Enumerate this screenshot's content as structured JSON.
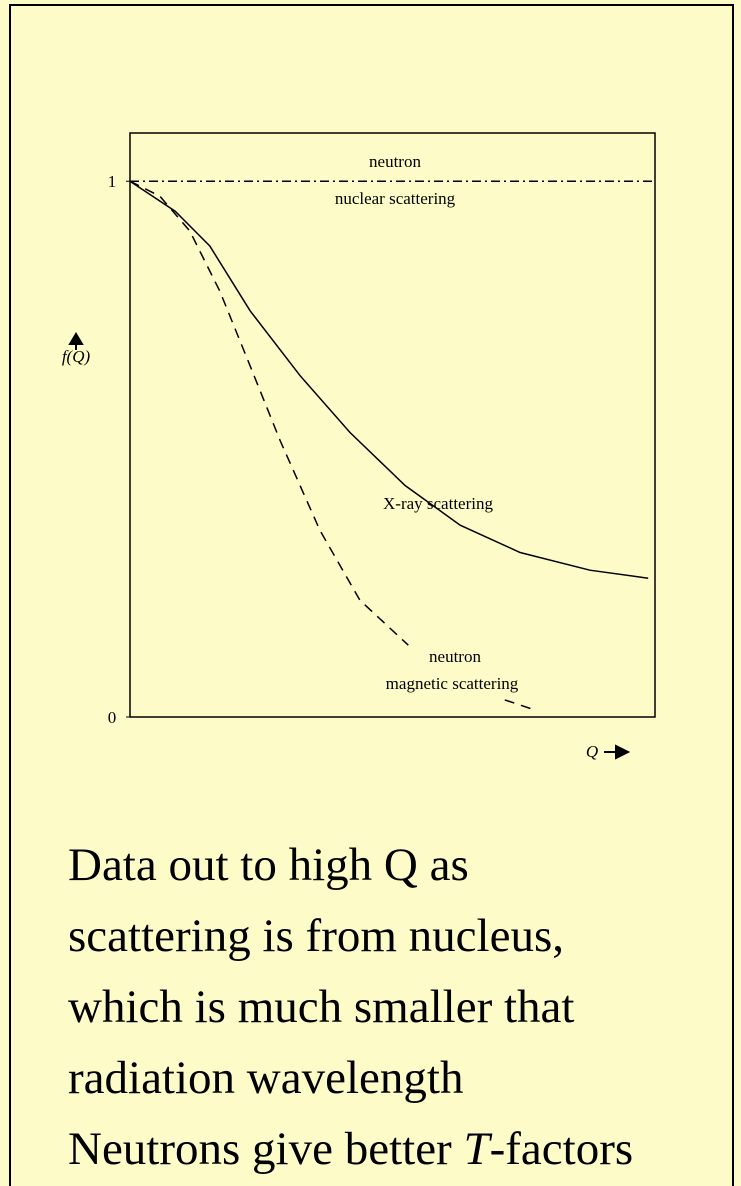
{
  "chart_data": {
    "type": "line",
    "x_label": "Q",
    "y_label": "f(Q)",
    "annotations": [
      "neutron",
      "nuclear scattering",
      "X-ray scattering",
      "neutron",
      "magnetic scattering"
    ],
    "xlim": [
      0,
      1
    ],
    "ylim": [
      0,
      1.09
    ],
    "yticks": [
      0,
      1
    ],
    "series": [
      {
        "color": "#000000",
        "style": "dashdot",
        "x": [
          0,
          1
        ],
        "values": [
          1,
          1
        ]
      },
      {
        "color": "#000000",
        "style": "solid",
        "x": [
          0,
          0.086,
          0.152,
          0.229,
          0.324,
          0.419,
          0.524,
          0.629,
          0.743,
          0.876,
          0.987
        ],
        "values": [
          1,
          0.944,
          0.879,
          0.758,
          0.637,
          0.531,
          0.432,
          0.358,
          0.307,
          0.274,
          0.259
        ]
      },
      {
        "color": "#000000",
        "style": "dashed",
        "x": [
          0,
          0.057,
          0.114,
          0.171,
          0.229,
          0.286,
          0.362,
          0.438,
          0.53,
          0.6,
          0.714,
          0.771
        ],
        "values": [
          1,
          0.972,
          0.907,
          0.795,
          0.655,
          0.516,
          0.348,
          0.218,
          0.134,
          null,
          0.032,
          0.013
        ]
      }
    ]
  },
  "caption": {
    "lines": [
      "Data out to high Q as",
      "scattering is from nucleus,",
      "which is much smaller that",
      "radiation wavelength"
    ],
    "last_line": [
      "Neutrons give better ",
      "T",
      "-factors"
    ]
  }
}
